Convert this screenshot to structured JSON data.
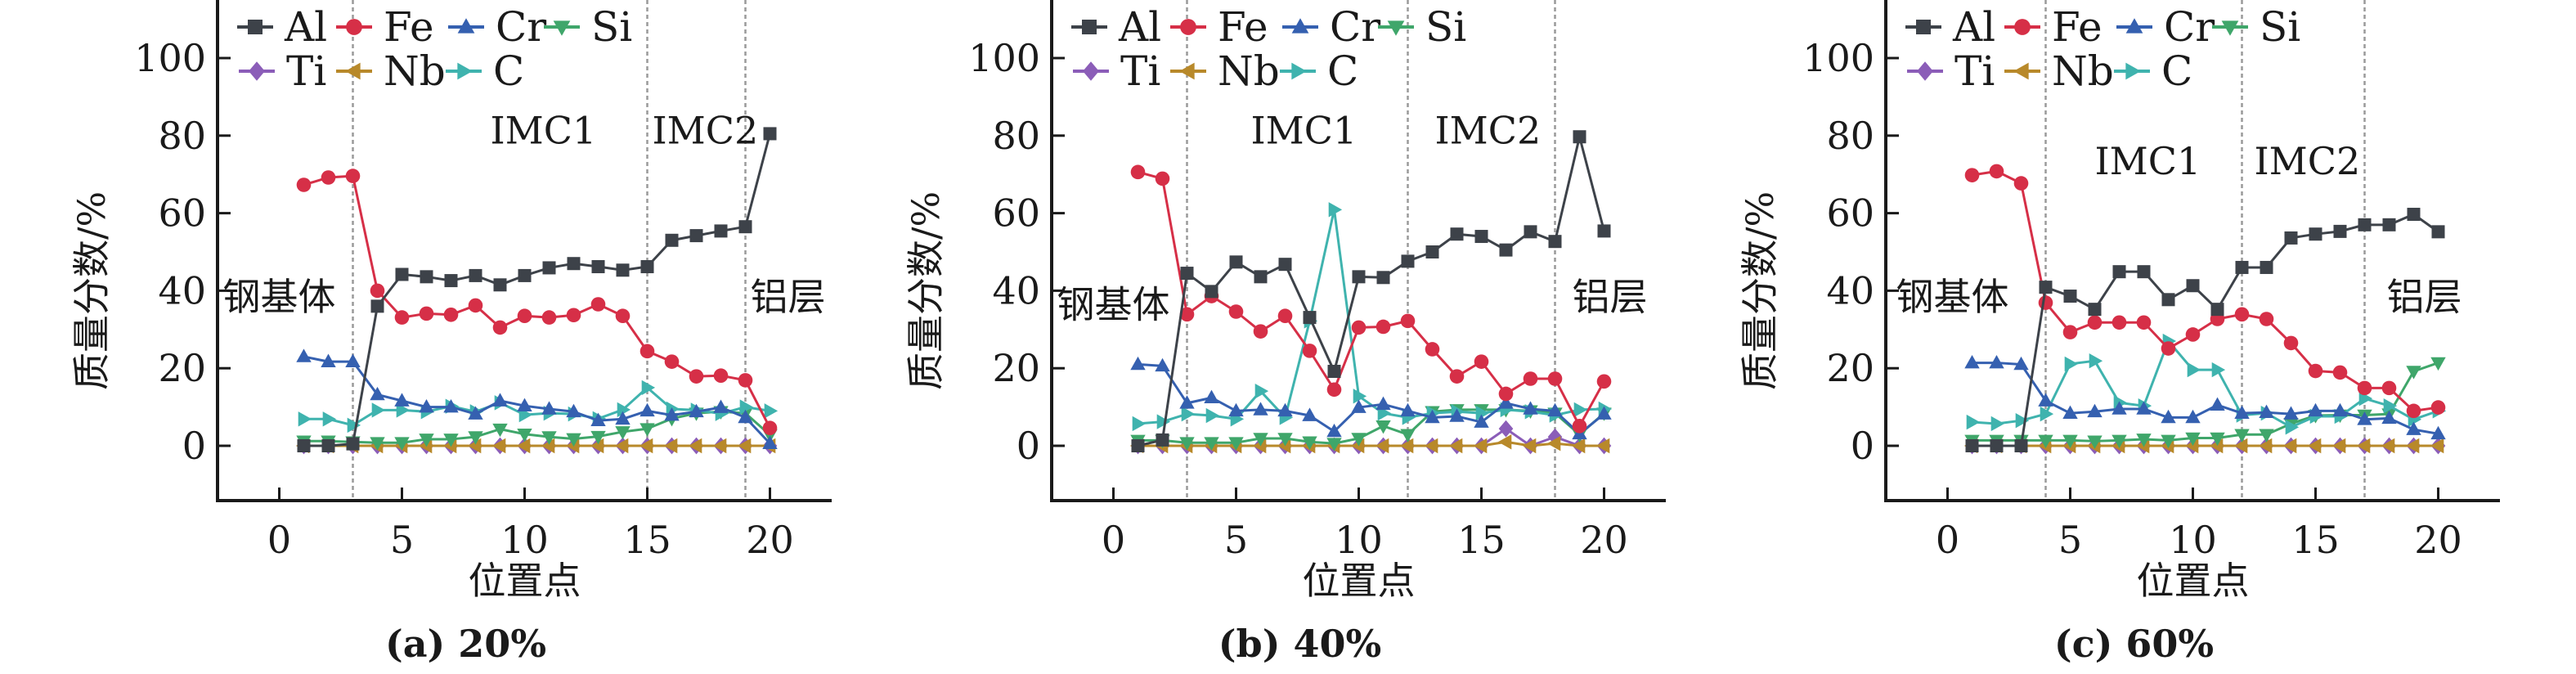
{
  "figure": {
    "panels_count": 3
  },
  "chart_data": [
    {
      "type": "line",
      "caption": "(a) 20%",
      "xlabel": "位置点",
      "ylabel": "质量分数/%",
      "xlim": [
        -2.5,
        22.5
      ],
      "ylim": [
        -14,
        115
      ],
      "xticks": [
        0,
        5,
        10,
        15,
        20
      ],
      "yticks": [
        0,
        20,
        40,
        60,
        80,
        100
      ],
      "xtick_labels": [
        "0",
        "5",
        "10",
        "15",
        "20"
      ],
      "ytick_labels": [
        "0",
        "20",
        "40",
        "60",
        "80",
        "100"
      ],
      "grid": false,
      "legend_position": "top-left",
      "region_dividers": [
        3,
        15,
        19
      ],
      "annotations": [
        {
          "text": "钢基体",
          "x": -2.3,
          "y": 35
        },
        {
          "text": "IMC1",
          "x": 8.6,
          "y": 78
        },
        {
          "text": "IMC2",
          "x": 15.2,
          "y": 78
        },
        {
          "text": "铝层",
          "x": 19.2,
          "y": 35
        }
      ],
      "x": [
        1,
        2,
        3,
        4,
        5,
        6,
        7,
        8,
        9,
        10,
        11,
        12,
        13,
        14,
        15,
        16,
        17,
        18,
        19,
        20
      ],
      "series": [
        {
          "name": "Al",
          "color": "#3d4249",
          "marker": "square",
          "values": [
            0,
            0,
            0.5,
            36,
            44.2,
            43.6,
            42.6,
            43.9,
            41.5,
            43.9,
            45.9,
            47,
            46.2,
            45.3,
            46.2,
            53,
            54.2,
            55.4,
            56.5,
            80.5
          ]
        },
        {
          "name": "Fe",
          "color": "#d62f47",
          "marker": "circle",
          "values": [
            67.3,
            69.2,
            69.6,
            40,
            33.1,
            34.1,
            33.8,
            36.2,
            30.5,
            33.5,
            33.1,
            33.7,
            36.5,
            33.5,
            24.4,
            21.7,
            17.9,
            18.1,
            16.9,
            4.6
          ]
        },
        {
          "name": "Cr",
          "color": "#3560b0",
          "marker": "triangle-up",
          "values": [
            23,
            21.7,
            21.7,
            13.2,
            11.6,
            10,
            10,
            8.2,
            11.6,
            10.3,
            9.5,
            8.8,
            6.5,
            6.9,
            9,
            7.9,
            8.8,
            9.9,
            7.3,
            0.6
          ]
        },
        {
          "name": "Si",
          "color": "#3fa66a",
          "marker": "triangle-down",
          "values": [
            1.2,
            1.2,
            1,
            0.8,
            0.8,
            1.7,
            1.7,
            2.3,
            4.3,
            3,
            2.3,
            1.8,
            2.4,
            3.6,
            4.4,
            7,
            8.4,
            8.8,
            8.4,
            2.8
          ]
        },
        {
          "name": "Ti",
          "color": "#8b5db8",
          "marker": "diamond",
          "values": [
            0,
            0,
            0,
            0,
            0,
            0,
            0,
            0,
            0,
            0,
            0,
            0,
            0,
            0,
            0,
            0,
            0,
            0,
            0,
            0
          ]
        },
        {
          "name": "Nb",
          "color": "#b8892a",
          "marker": "triangle-left",
          "values": [
            0,
            0,
            0,
            0,
            0,
            0,
            0,
            0,
            0,
            0,
            0,
            0,
            0,
            0,
            0,
            0,
            0,
            0,
            0,
            0
          ]
        },
        {
          "name": "C",
          "color": "#3fb3ae",
          "marker": "triangle-right",
          "values": [
            6.9,
            6.9,
            5.3,
            9.2,
            9.2,
            8.8,
            10.2,
            8.8,
            11.1,
            8,
            8.4,
            8.2,
            7,
            9.3,
            15,
            9.5,
            9.2,
            8.3,
            10,
            9
          ]
        }
      ]
    },
    {
      "type": "line",
      "caption": "(b) 40%",
      "xlabel": "位置点",
      "ylabel": "质量分数/%",
      "xlim": [
        -2.5,
        22.5
      ],
      "ylim": [
        -14,
        115
      ],
      "xticks": [
        0,
        5,
        10,
        15,
        20
      ],
      "yticks": [
        0,
        20,
        40,
        60,
        80,
        100
      ],
      "xtick_labels": [
        "0",
        "5",
        "10",
        "15",
        "20"
      ],
      "ytick_labels": [
        "0",
        "20",
        "40",
        "60",
        "80",
        "100"
      ],
      "grid": false,
      "legend_position": "top-left",
      "region_dividers": [
        3,
        12,
        18
      ],
      "annotations": [
        {
          "text": "钢基体",
          "x": -2.3,
          "y": 33
        },
        {
          "text": "IMC1",
          "x": 5.6,
          "y": 78
        },
        {
          "text": "IMC2",
          "x": 13.1,
          "y": 78
        },
        {
          "text": "铝层",
          "x": 18.7,
          "y": 35
        }
      ],
      "x": [
        1,
        2,
        3,
        4,
        5,
        6,
        7,
        8,
        9,
        10,
        11,
        12,
        13,
        14,
        15,
        16,
        17,
        18,
        19,
        20
      ],
      "series": [
        {
          "name": "Al",
          "color": "#3d4249",
          "marker": "square",
          "values": [
            0,
            1.5,
            44.5,
            39.8,
            47.4,
            43.6,
            46.8,
            33.1,
            19.2,
            43.6,
            43.4,
            47.6,
            50,
            54.6,
            54,
            50.5,
            55.2,
            52.7,
            79.7,
            55.4
          ]
        },
        {
          "name": "Fe",
          "color": "#d62f47",
          "marker": "circle",
          "values": [
            70.6,
            68.9,
            33.9,
            38.6,
            34.6,
            29.5,
            33.5,
            24.5,
            14.5,
            30.5,
            30.7,
            32.2,
            24.9,
            17.9,
            21.7,
            13.4,
            17.3,
            17.3,
            5.1,
            16.6
          ]
        },
        {
          "name": "Cr",
          "color": "#3560b0",
          "marker": "triangle-up",
          "values": [
            21,
            20.6,
            11,
            12.4,
            9,
            9.3,
            9,
            7.8,
            3.7,
            9.9,
            10.7,
            9,
            7.3,
            7.6,
            6.1,
            11,
            9.5,
            9,
            3.1,
            8.2
          ]
        },
        {
          "name": "Si",
          "color": "#3fa66a",
          "marker": "triangle-down",
          "values": [
            1.4,
            1.4,
            0.8,
            0.8,
            0.8,
            1.9,
            1.9,
            1,
            0.6,
            1.9,
            5.1,
            2.9,
            8.8,
            9.3,
            9.3,
            9.3,
            9,
            8.4,
            2.9,
            8.4
          ]
        },
        {
          "name": "Ti",
          "color": "#8b5db8",
          "marker": "diamond",
          "values": [
            0,
            0,
            0,
            0,
            0,
            0,
            0,
            0,
            0,
            0,
            0,
            0,
            0,
            0,
            0,
            4.4,
            0,
            2.3,
            0,
            0
          ]
        },
        {
          "name": "Nb",
          "color": "#b8892a",
          "marker": "triangle-left",
          "values": [
            0,
            0,
            0,
            0,
            0,
            0,
            0,
            0,
            0,
            0,
            0,
            0,
            0,
            0,
            0,
            1,
            0,
            0.6,
            0,
            0
          ]
        },
        {
          "name": "C",
          "color": "#3fb3ae",
          "marker": "triangle-right",
          "values": [
            5.7,
            6.2,
            8.2,
            7.8,
            6.9,
            14.1,
            7.3,
            32.2,
            60.9,
            12.8,
            8.4,
            7.3,
            8.4,
            8.8,
            8.4,
            9.3,
            8.8,
            7.9,
            9.3,
            9.5
          ]
        }
      ]
    },
    {
      "type": "line",
      "caption": "(c) 60%",
      "xlabel": "位置点",
      "ylabel": "质量分数/%",
      "xlim": [
        -2.5,
        22.5
      ],
      "ylim": [
        -14,
        115
      ],
      "xticks": [
        0,
        5,
        10,
        15,
        20
      ],
      "yticks": [
        0,
        20,
        40,
        60,
        80,
        100
      ],
      "xtick_labels": [
        "0",
        "5",
        "10",
        "15",
        "20"
      ],
      "ytick_labels": [
        "0",
        "20",
        "40",
        "60",
        "80",
        "100"
      ],
      "grid": false,
      "legend_position": "top-left",
      "region_dividers": [
        4,
        12,
        17
      ],
      "annotations": [
        {
          "text": "钢基体",
          "x": -2.1,
          "y": 35
        },
        {
          "text": "IMC1",
          "x": 6.0,
          "y": 70
        },
        {
          "text": "IMC2",
          "x": 12.5,
          "y": 70
        },
        {
          "text": "铝层",
          "x": 17.9,
          "y": 35
        }
      ],
      "x": [
        1,
        2,
        3,
        4,
        5,
        6,
        7,
        8,
        9,
        10,
        11,
        12,
        13,
        14,
        15,
        16,
        17,
        18,
        19,
        20
      ],
      "series": [
        {
          "name": "Al",
          "color": "#3d4249",
          "marker": "square",
          "values": [
            0,
            0,
            0,
            40.9,
            38.6,
            35.2,
            44.9,
            44.9,
            37.7,
            41.3,
            35.2,
            46,
            46,
            53.6,
            54.6,
            55.3,
            57,
            57,
            59.7,
            55.2
          ]
        },
        {
          "name": "Fe",
          "color": "#d62f47",
          "marker": "circle",
          "values": [
            69.8,
            70.8,
            67.7,
            36.9,
            29.3,
            31.8,
            31.8,
            31.8,
            25.1,
            28.7,
            32.7,
            33.9,
            32.7,
            26.5,
            19.3,
            18.9,
            14.9,
            14.9,
            9,
            9.9
          ]
        },
        {
          "name": "Cr",
          "color": "#3560b0",
          "marker": "triangle-up",
          "values": [
            21.4,
            21.4,
            21,
            11.6,
            8.4,
            8.8,
            9.5,
            9.5,
            7.3,
            7.3,
            10.5,
            8.4,
            8.6,
            8.2,
            9,
            9,
            6.8,
            7.1,
            4.2,
            3.1
          ]
        },
        {
          "name": "Si",
          "color": "#3fa66a",
          "marker": "triangle-down",
          "values": [
            1.4,
            1.4,
            1.4,
            1.4,
            1.4,
            1.2,
            1.4,
            1.7,
            1.4,
            2,
            2,
            2.9,
            2.9,
            5.7,
            7.8,
            7.9,
            7.9,
            8.2,
            19.2,
            21.4
          ]
        },
        {
          "name": "Ti",
          "color": "#8b5db8",
          "marker": "diamond",
          "values": [
            0,
            0,
            0,
            0,
            0,
            0,
            0,
            0,
            0,
            0,
            0,
            0,
            0,
            0,
            0,
            0,
            0,
            0,
            0,
            0
          ]
        },
        {
          "name": "Nb",
          "color": "#b8892a",
          "marker": "triangle-left",
          "values": [
            0,
            0,
            0,
            0,
            0,
            0,
            0,
            0,
            0,
            0,
            0,
            0,
            0,
            0,
            0,
            0,
            0,
            0,
            0,
            0
          ]
        },
        {
          "name": "C",
          "color": "#3fb3ae",
          "marker": "triangle-right",
          "values": [
            6.1,
            5.7,
            6.5,
            8.2,
            21.1,
            21.9,
            11.1,
            10.3,
            27,
            19.6,
            19.6,
            7.9,
            8.4,
            4.8,
            7.6,
            7.6,
            12.2,
            10.3,
            6.8,
            9
          ]
        }
      ]
    }
  ]
}
